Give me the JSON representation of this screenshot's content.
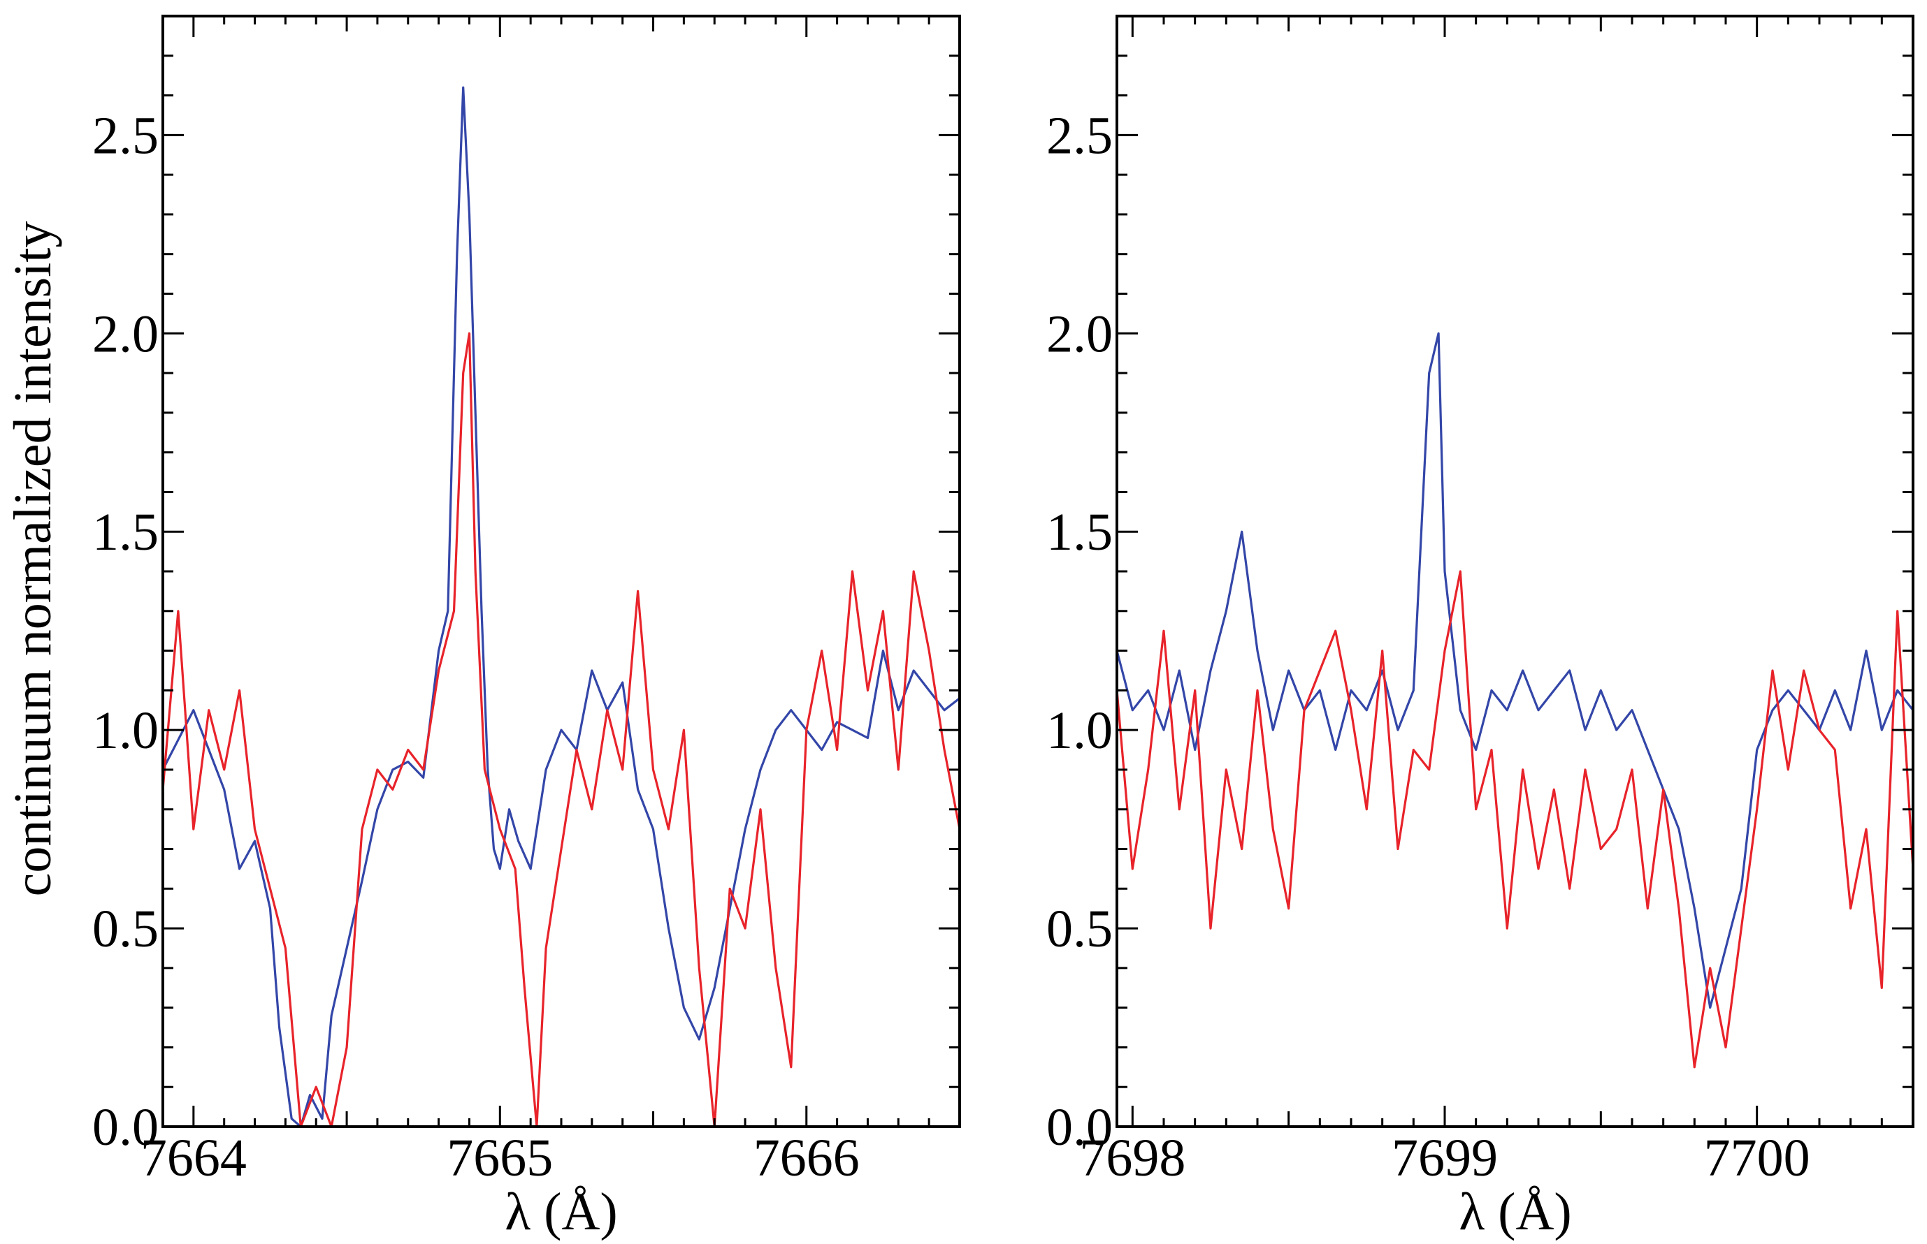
{
  "figure": {
    "ylabel": "continuum normalized intensity",
    "xlabel": "λ (Å)"
  },
  "chart_data": [
    {
      "type": "line",
      "panel": "left",
      "xlabel": "λ (Å)",
      "ylabel": "continuum normalized intensity",
      "xlim": [
        7663.9,
        7666.5
      ],
      "ylim": [
        0.0,
        2.8
      ],
      "xticks": [
        7664,
        7665,
        7666
      ],
      "xtick_labels": [
        "7664",
        "7665",
        "7666"
      ],
      "yticks": [
        0.0,
        0.5,
        1.0,
        1.5,
        2.0,
        2.5
      ],
      "ytick_labels": [
        "0.0",
        "0.5",
        "1.0",
        "1.5",
        "2.0",
        "2.5"
      ],
      "series": [
        {
          "color": "#3346a8",
          "x": [
            7663.9,
            7664.0,
            7664.05,
            7664.1,
            7664.15,
            7664.2,
            7664.25,
            7664.28,
            7664.32,
            7664.35,
            7664.38,
            7664.42,
            7664.45,
            7664.5,
            7664.55,
            7664.6,
            7664.65,
            7664.7,
            7664.75,
            7664.8,
            7664.83,
            7664.86,
            7664.88,
            7664.9,
            7664.92,
            7664.94,
            7664.96,
            7664.98,
            7665.0,
            7665.03,
            7665.06,
            7665.1,
            7665.15,
            7665.2,
            7665.25,
            7665.3,
            7665.35,
            7665.4,
            7665.45,
            7665.5,
            7665.55,
            7665.6,
            7665.65,
            7665.7,
            7665.75,
            7665.8,
            7665.85,
            7665.9,
            7665.95,
            7666.0,
            7666.05,
            7666.1,
            7666.15,
            7666.2,
            7666.25,
            7666.3,
            7666.35,
            7666.4,
            7666.45,
            7666.5
          ],
          "y": [
            0.9,
            1.05,
            0.95,
            0.85,
            0.65,
            0.72,
            0.55,
            0.25,
            0.02,
            0.0,
            0.08,
            0.02,
            0.28,
            0.45,
            0.62,
            0.8,
            0.9,
            0.92,
            0.88,
            1.2,
            1.3,
            2.2,
            2.62,
            2.3,
            1.8,
            1.3,
            0.9,
            0.7,
            0.65,
            0.8,
            0.72,
            0.65,
            0.9,
            1.0,
            0.95,
            1.15,
            1.05,
            1.12,
            0.85,
            0.75,
            0.5,
            0.3,
            0.22,
            0.35,
            0.55,
            0.75,
            0.9,
            1.0,
            1.05,
            1.0,
            0.95,
            1.02,
            1.0,
            0.98,
            1.2,
            1.05,
            1.15,
            1.1,
            1.05,
            1.08
          ]
        },
        {
          "color": "#e8232a",
          "x": [
            7663.9,
            7663.95,
            7664.0,
            7664.05,
            7664.1,
            7664.15,
            7664.2,
            7664.25,
            7664.3,
            7664.35,
            7664.4,
            7664.45,
            7664.5,
            7664.55,
            7664.6,
            7664.65,
            7664.7,
            7664.75,
            7664.8,
            7664.85,
            7664.88,
            7664.9,
            7664.92,
            7664.95,
            7665.0,
            7665.05,
            7665.08,
            7665.12,
            7665.15,
            7665.2,
            7665.25,
            7665.3,
            7665.35,
            7665.4,
            7665.45,
            7665.5,
            7665.55,
            7665.6,
            7665.65,
            7665.7,
            7665.75,
            7665.8,
            7665.85,
            7665.9,
            7665.95,
            7666.0,
            7666.05,
            7666.1,
            7666.15,
            7666.2,
            7666.25,
            7666.3,
            7666.35,
            7666.4,
            7666.45,
            7666.5
          ],
          "y": [
            0.85,
            1.3,
            0.75,
            1.05,
            0.9,
            1.1,
            0.75,
            0.6,
            0.45,
            0.0,
            0.1,
            0.0,
            0.2,
            0.75,
            0.9,
            0.85,
            0.95,
            0.9,
            1.15,
            1.3,
            1.9,
            2.0,
            1.4,
            0.9,
            0.75,
            0.65,
            0.35,
            0.0,
            0.45,
            0.7,
            0.95,
            0.8,
            1.05,
            0.9,
            1.35,
            0.9,
            0.75,
            1.0,
            0.4,
            0.0,
            0.6,
            0.5,
            0.8,
            0.4,
            0.15,
            1.0,
            1.2,
            0.95,
            1.4,
            1.1,
            1.3,
            0.9,
            1.4,
            1.2,
            0.95,
            0.75
          ]
        }
      ]
    },
    {
      "type": "line",
      "panel": "right",
      "xlabel": "λ (Å)",
      "xlim": [
        7697.95,
        7700.5
      ],
      "ylim": [
        0.0,
        2.8
      ],
      "xticks": [
        7698,
        7699,
        7700
      ],
      "xtick_labels": [
        "7698",
        "7699",
        "7700"
      ],
      "yticks": [
        0.0,
        0.5,
        1.0,
        1.5,
        2.0,
        2.5
      ],
      "ytick_labels": [
        "0.0",
        "0.5",
        "1.0",
        "1.5",
        "2.0",
        "2.5"
      ],
      "series": [
        {
          "color": "#3346a8",
          "x": [
            7697.95,
            7698.0,
            7698.05,
            7698.1,
            7698.15,
            7698.2,
            7698.25,
            7698.3,
            7698.35,
            7698.4,
            7698.45,
            7698.5,
            7698.55,
            7698.6,
            7698.65,
            7698.7,
            7698.75,
            7698.8,
            7698.85,
            7698.9,
            7698.95,
            7698.98,
            7699.0,
            7699.05,
            7699.1,
            7699.15,
            7699.2,
            7699.25,
            7699.3,
            7699.35,
            7699.4,
            7699.45,
            7699.5,
            7699.55,
            7699.6,
            7699.65,
            7699.7,
            7699.75,
            7699.8,
            7699.85,
            7699.9,
            7699.95,
            7700.0,
            7700.05,
            7700.1,
            7700.15,
            7700.2,
            7700.25,
            7700.3,
            7700.35,
            7700.4,
            7700.45,
            7700.5
          ],
          "y": [
            1.2,
            1.05,
            1.1,
            1.0,
            1.15,
            0.95,
            1.15,
            1.3,
            1.5,
            1.2,
            1.0,
            1.15,
            1.05,
            1.1,
            0.95,
            1.1,
            1.05,
            1.15,
            1.0,
            1.1,
            1.9,
            2.0,
            1.4,
            1.05,
            0.95,
            1.1,
            1.05,
            1.15,
            1.05,
            1.1,
            1.15,
            1.0,
            1.1,
            1.0,
            1.05,
            0.95,
            0.85,
            0.75,
            0.55,
            0.3,
            0.45,
            0.6,
            0.95,
            1.05,
            1.1,
            1.05,
            1.0,
            1.1,
            1.0,
            1.2,
            1.0,
            1.1,
            1.05
          ]
        },
        {
          "color": "#e8232a",
          "x": [
            7697.95,
            7698.0,
            7698.05,
            7698.1,
            7698.15,
            7698.2,
            7698.25,
            7698.3,
            7698.35,
            7698.4,
            7698.45,
            7698.5,
            7698.55,
            7698.6,
            7698.65,
            7698.7,
            7698.75,
            7698.8,
            7698.85,
            7698.9,
            7698.95,
            7699.0,
            7699.05,
            7699.1,
            7699.15,
            7699.2,
            7699.25,
            7699.3,
            7699.35,
            7699.4,
            7699.45,
            7699.5,
            7699.55,
            7699.6,
            7699.65,
            7699.7,
            7699.75,
            7699.8,
            7699.85,
            7699.9,
            7699.95,
            7700.0,
            7700.05,
            7700.1,
            7700.15,
            7700.2,
            7700.25,
            7700.3,
            7700.35,
            7700.4,
            7700.45,
            7700.5
          ],
          "y": [
            1.1,
            0.65,
            0.9,
            1.25,
            0.8,
            1.1,
            0.5,
            0.9,
            0.7,
            1.1,
            0.75,
            0.55,
            1.05,
            1.15,
            1.25,
            1.05,
            0.8,
            1.2,
            0.7,
            0.95,
            0.9,
            1.2,
            1.4,
            0.8,
            0.95,
            0.5,
            0.9,
            0.65,
            0.85,
            0.6,
            0.9,
            0.7,
            0.75,
            0.9,
            0.55,
            0.85,
            0.55,
            0.15,
            0.4,
            0.2,
            0.5,
            0.8,
            1.15,
            0.9,
            1.15,
            1.0,
            0.95,
            0.55,
            0.75,
            0.35,
            1.3,
            0.65
          ]
        }
      ]
    }
  ]
}
